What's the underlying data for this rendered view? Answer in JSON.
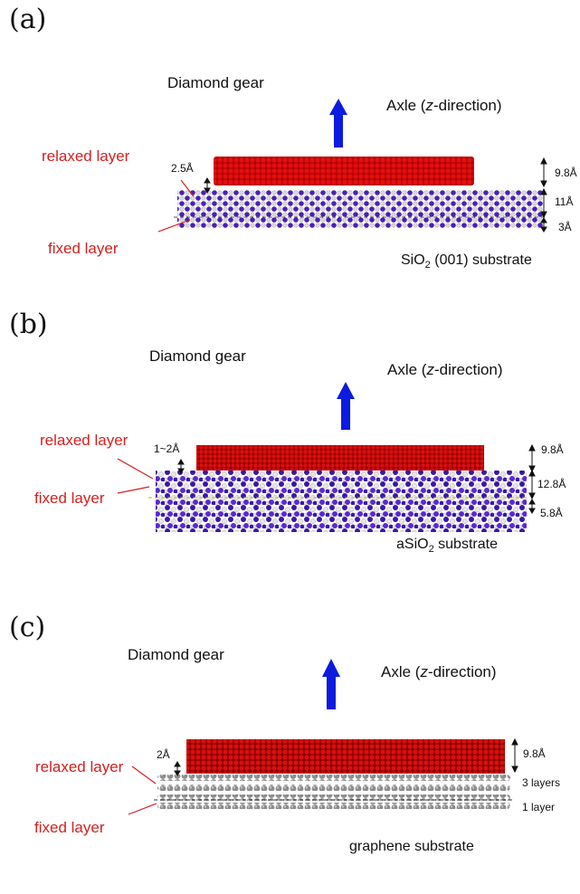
{
  "colors": {
    "gear": "#cc0000",
    "gear_dark": "#7a0000",
    "arrow": "#0b1be0",
    "label_red": "#d42020",
    "silicon": "#4b1fb8",
    "oxygen": "#e8e8e8",
    "graphene": "#8c8c8c"
  },
  "panels": [
    {
      "label": "(a)",
      "gear_title": "Diamond gear",
      "axle_prefix": "Axle (",
      "axle_z": "z",
      "axle_suffix": "-direction)",
      "relaxed": "relaxed layer",
      "fixed": "fixed layer",
      "gap": "2.5Å",
      "dims": [
        "9.8Å",
        "11Å",
        "3Å"
      ],
      "substrate_pre": "SiO",
      "substrate_sub": "2",
      "substrate_post": " (001) substrate"
    },
    {
      "label": "(b)",
      "gear_title": "Diamond gear",
      "axle_prefix": "Axle (",
      "axle_z": "z",
      "axle_suffix": "-direction)",
      "relaxed": "relaxed layer",
      "fixed": "fixed layer",
      "gap": "1~2Å",
      "dims": [
        "9.8Å",
        "12.8Å",
        "5.8Å"
      ],
      "substrate_pre": "aSiO",
      "substrate_sub": "2",
      "substrate_post": " substrate"
    },
    {
      "label": "(c)",
      "gear_title": "Diamond gear",
      "axle_prefix": "Axle (",
      "axle_z": "z",
      "axle_suffix": "-direction)",
      "relaxed": "relaxed layer",
      "fixed": "fixed layer",
      "gap": "2Å",
      "dims": [
        "9.8Å",
        "3 layers",
        "1 layer"
      ],
      "substrate": "graphene substrate"
    }
  ]
}
